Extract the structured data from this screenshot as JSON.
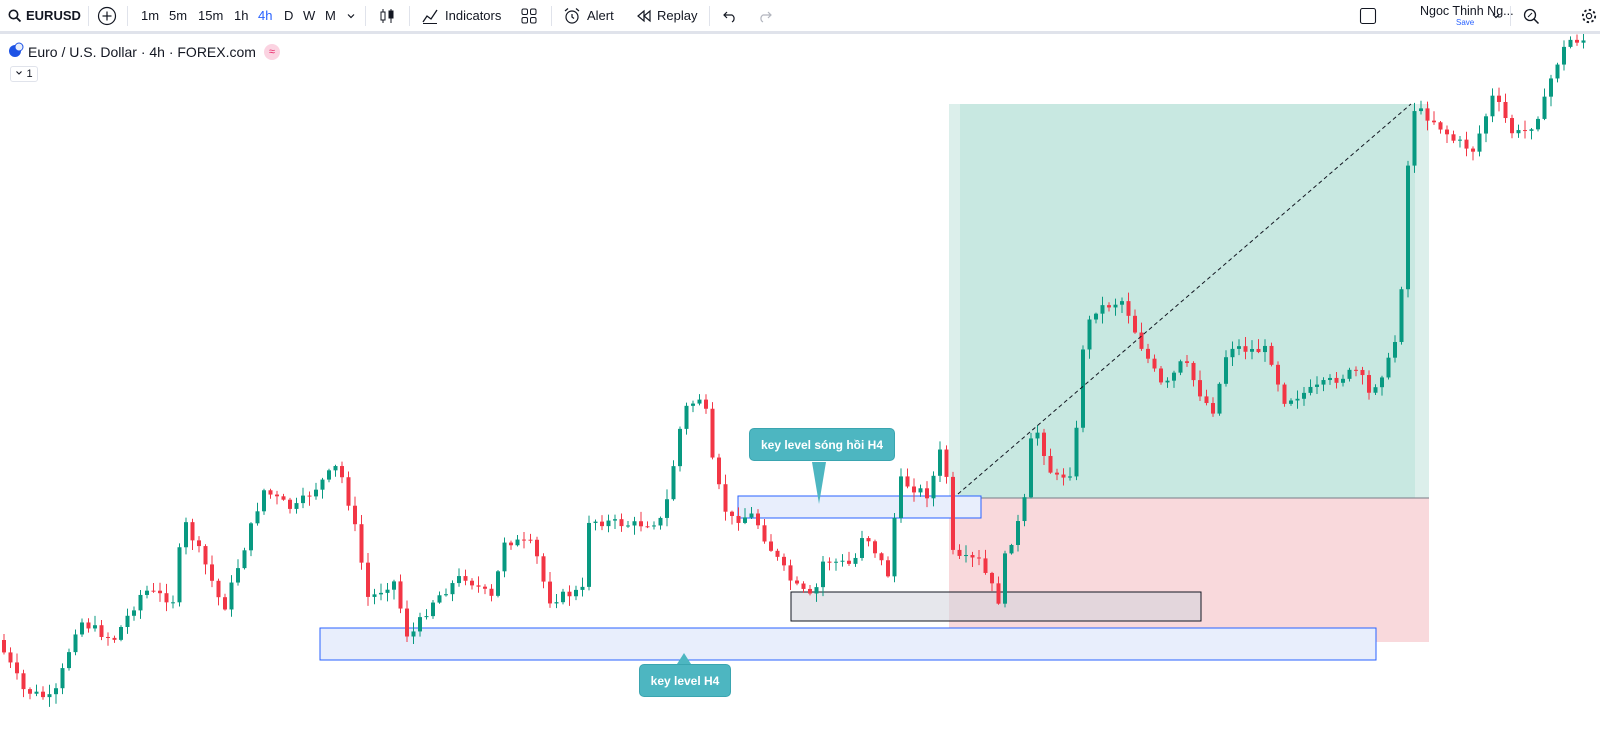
{
  "toolbar": {
    "symbol": "EURUSD",
    "timeframes": [
      "1m",
      "5m",
      "15m",
      "1h",
      "4h",
      "D",
      "W",
      "M"
    ],
    "active_timeframe": "4h",
    "indicators_label": "Indicators",
    "alert_label": "Alert",
    "replay_label": "Replay",
    "user_name": "Ngoc Thinh Ng...",
    "save_label": "Save"
  },
  "legend": {
    "title": "Euro / U.S. Dollar · 4h · FOREX.com",
    "badge": "≈",
    "collapse_count": "1"
  },
  "annotations": {
    "callout_top": "key level sóng hồi H4",
    "callout_bottom": "key level H4"
  },
  "colors": {
    "up": "#089981",
    "down": "#f23645",
    "accent": "#2962ff",
    "profit_zone": "#c8e8e1",
    "loss_zone": "#f9d9dc",
    "key_level_fill": "#e8eefc",
    "key_level_border": "#2962ff",
    "callout": "#4db6c1"
  },
  "icons": [
    "search-icon",
    "plus-circle-icon",
    "chevron-down-icon",
    "candles-icon",
    "indicators-icon",
    "layout-icon",
    "alert-icon",
    "replay-icon",
    "undo-icon",
    "redo-icon",
    "square-icon",
    "screenshot-icon",
    "settings-icon"
  ]
}
